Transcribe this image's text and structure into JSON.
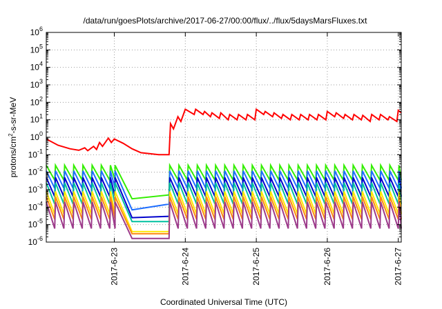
{
  "chart_data": {
    "type": "line",
    "title": "/data/run/goesPlots/archive/2017-06-27/00:00/flux/../flux/5daysMarsFluxes.txt",
    "xlabel": "Coordinated Universal Time (UTC)",
    "ylabel_parts": [
      "protons/cm",
      "2",
      "-s-sr-MeV"
    ],
    "x_range": [
      "2017-06-22 01:00",
      "2017-06-27 01:00"
    ],
    "x_ticks": [
      "2017-6-23",
      "2017-6-24",
      "2017-6-25",
      "2017-6-26",
      "2017-6-27"
    ],
    "y_scale": "log",
    "ylim": [
      1e-06,
      1000000.0
    ],
    "y_ticks": [
      {
        "base": "10",
        "exp": "-6",
        "value": 1e-06
      },
      {
        "base": "10",
        "exp": "-5",
        "value": 1e-05
      },
      {
        "base": "10",
        "exp": "-4",
        "value": 0.0001
      },
      {
        "base": "10",
        "exp": "-3",
        "value": 0.001
      },
      {
        "base": "10",
        "exp": "-2",
        "value": 0.01
      },
      {
        "base": "10",
        "exp": "-1",
        "value": 0.1
      },
      {
        "base": "10",
        "exp": "0",
        "value": 1
      },
      {
        "base": "10",
        "exp": "1",
        "value": 10
      },
      {
        "base": "10",
        "exp": "2",
        "value": 100
      },
      {
        "base": "10",
        "exp": "3",
        "value": 1000
      },
      {
        "base": "10",
        "exp": "4",
        "value": 10000
      },
      {
        "base": "10",
        "exp": "5",
        "value": 100000
      },
      {
        "base": "10",
        "exp": "6",
        "value": 1000000
      }
    ],
    "grid": true,
    "legend": "none",
    "series": [
      {
        "color": "#ff0000",
        "width": 2,
        "points": [
          [
            "2017-06-22 01:00",
            0.8
          ],
          [
            "2017-06-22 05:00",
            0.35
          ],
          [
            "2017-06-22 09:00",
            0.22
          ],
          [
            "2017-06-22 12:00",
            0.18
          ],
          [
            "2017-06-22 14:00",
            0.25
          ],
          [
            "2017-06-22 15:00",
            0.17
          ],
          [
            "2017-06-22 17:00",
            0.3
          ],
          [
            "2017-06-22 18:00",
            0.2
          ],
          [
            "2017-06-22 19:00",
            0.5
          ],
          [
            "2017-06-22 20:00",
            0.3
          ],
          [
            "2017-06-22 22:00",
            0.9
          ],
          [
            "2017-06-22 23:00",
            0.5
          ],
          [
            "2017-06-23 00:00",
            0.8
          ],
          [
            "2017-06-23 03:00",
            0.45
          ],
          [
            "2017-06-23 06:00",
            0.22
          ],
          [
            "2017-06-23 09:00",
            0.13
          ],
          [
            "2017-06-23 15:00",
            0.1
          ],
          [
            "2017-06-23 18:30",
            0.1
          ],
          [
            "2017-06-23 19:00",
            6
          ],
          [
            "2017-06-23 20:00",
            3
          ],
          [
            "2017-06-23 21:30",
            15
          ],
          [
            "2017-06-23 22:30",
            8
          ],
          [
            "2017-06-24 00:00",
            40
          ],
          [
            "2017-06-24 03:00",
            20
          ],
          [
            "2017-06-24 03:30",
            40
          ],
          [
            "2017-06-24 06:00",
            20
          ],
          [
            "2017-06-24 06:30",
            30
          ],
          [
            "2017-06-24 08:30",
            15
          ],
          [
            "2017-06-24 09:00",
            25
          ],
          [
            "2017-06-24 11:30",
            12
          ],
          [
            "2017-06-24 12:00",
            25
          ],
          [
            "2017-06-24 14:30",
            10
          ],
          [
            "2017-06-24 15:00",
            20
          ],
          [
            "2017-06-24 17:30",
            10
          ],
          [
            "2017-06-24 18:00",
            20
          ],
          [
            "2017-06-24 20:30",
            10
          ],
          [
            "2017-06-24 21:00",
            20
          ],
          [
            "2017-06-24 23:30",
            10
          ],
          [
            "2017-06-25 00:00",
            40
          ],
          [
            "2017-06-25 02:30",
            20
          ],
          [
            "2017-06-25 03:00",
            30
          ],
          [
            "2017-06-25 05:30",
            15
          ],
          [
            "2017-06-25 06:00",
            25
          ],
          [
            "2017-06-25 08:30",
            12
          ],
          [
            "2017-06-25 09:00",
            20
          ],
          [
            "2017-06-25 11:30",
            10
          ],
          [
            "2017-06-25 12:00",
            20
          ],
          [
            "2017-06-25 14:30",
            10
          ],
          [
            "2017-06-25 15:00",
            20
          ],
          [
            "2017-06-25 17:30",
            10
          ],
          [
            "2017-06-25 18:00",
            20
          ],
          [
            "2017-06-25 20:30",
            10
          ],
          [
            "2017-06-25 21:00",
            20
          ],
          [
            "2017-06-25 23:30",
            10
          ],
          [
            "2017-06-26 00:00",
            30
          ],
          [
            "2017-06-26 02:30",
            15
          ],
          [
            "2017-06-26 03:00",
            25
          ],
          [
            "2017-06-26 05:30",
            12
          ],
          [
            "2017-06-26 06:00",
            20
          ],
          [
            "2017-06-26 08:30",
            10
          ],
          [
            "2017-06-26 09:00",
            20
          ],
          [
            "2017-06-26 11:30",
            10
          ],
          [
            "2017-06-26 12:00",
            18
          ],
          [
            "2017-06-26 14:30",
            8
          ],
          [
            "2017-06-26 15:00",
            20
          ],
          [
            "2017-06-26 17:30",
            10
          ],
          [
            "2017-06-26 18:00",
            20
          ],
          [
            "2017-06-26 20:30",
            10
          ],
          [
            "2017-06-26 21:00",
            15
          ],
          [
            "2017-06-26 23:30",
            8
          ],
          [
            "2017-06-27 00:00",
            35
          ],
          [
            "2017-06-27 01:00",
            25
          ]
        ]
      },
      {
        "color": "#33ee00",
        "width": 2,
        "sawtooth": {
          "pre_start": "2017-06-22 01:00",
          "pre_end": "2017-06-23 00:15",
          "pre_peak": 0.025,
          "pre_trough": 0.0035,
          "decay_start": "2017-06-23 00:15",
          "decay_end": "2017-06-23 06:00",
          "floor": 0.0003,
          "floor_end": "2017-06-23 18:30",
          "floor_end_value": 0.0005,
          "post_start": "2017-06-23 18:45",
          "post_end": "2017-06-27 01:00",
          "post_peak": 0.025,
          "post_trough": 0.0035,
          "period_hours": 3.1
        }
      },
      {
        "color": "#1e6eff",
        "width": 2,
        "sawtooth": {
          "pre_start": "2017-06-22 01:00",
          "pre_end": "2017-06-23 00:15",
          "pre_peak": 0.012,
          "pre_trough": 0.0012,
          "decay_start": "2017-06-23 00:15",
          "decay_end": "2017-06-23 06:00",
          "floor": 7e-05,
          "floor_end": "2017-06-23 18:30",
          "floor_end_value": 0.00015,
          "post_start": "2017-06-23 18:45",
          "post_end": "2017-06-27 01:00",
          "post_peak": 0.012,
          "post_trough": 0.0012,
          "period_hours": 3.1
        }
      },
      {
        "color": "#0000cc",
        "width": 2,
        "sawtooth": {
          "pre_start": "2017-06-22 01:00",
          "pre_end": "2017-06-23 00:15",
          "pre_peak": 0.005,
          "pre_trough": 0.0004,
          "decay_start": "2017-06-23 00:15",
          "decay_end": "2017-06-23 06:00",
          "floor": 2.5e-05,
          "floor_end": "2017-06-23 18:30",
          "floor_end_value": 3e-05,
          "post_start": "2017-06-23 18:45",
          "post_end": "2017-06-27 01:00",
          "post_peak": 0.005,
          "post_trough": 0.0004,
          "period_hours": 3.1
        }
      },
      {
        "color": "#00c0a0",
        "width": 2,
        "sawtooth": {
          "pre_start": "2017-06-22 01:00",
          "pre_end": "2017-06-23 00:15",
          "pre_peak": 0.0025,
          "pre_trough": 0.00015,
          "decay_start": "2017-06-23 00:15",
          "decay_end": "2017-06-23 06:00",
          "floor": 1.5e-05,
          "floor_end": "2017-06-23 18:30",
          "floor_end_value": 1.5e-05,
          "post_start": "2017-06-23 18:45",
          "post_end": "2017-06-27 01:00",
          "post_peak": 0.0025,
          "post_trough": 0.00015,
          "period_hours": 3.1
        }
      },
      {
        "color": "#ffe800",
        "width": 2,
        "sawtooth": {
          "pre_start": "2017-06-22 01:00",
          "pre_end": "2017-06-23 00:15",
          "pre_peak": 0.0008,
          "pre_trough": 4e-05,
          "decay_start": "2017-06-23 00:15",
          "decay_end": "2017-06-23 06:00",
          "floor": 4e-06,
          "floor_end": "2017-06-23 18:30",
          "floor_end_value": 4e-06,
          "post_start": "2017-06-23 18:45",
          "post_end": "2017-06-27 01:00",
          "post_peak": 0.0008,
          "post_trough": 4e-05,
          "period_hours": 3.1
        }
      },
      {
        "color": "#ff8a10",
        "width": 2,
        "sawtooth": {
          "pre_start": "2017-06-22 01:00",
          "pre_end": "2017-06-23 00:15",
          "pre_peak": 0.0004,
          "pre_trough": 2e-05,
          "decay_start": "2017-06-23 00:15",
          "decay_end": "2017-06-23 06:00",
          "floor": 3e-06,
          "floor_end": "2017-06-23 18:30",
          "floor_end_value": 3e-06,
          "post_start": "2017-06-23 18:45",
          "post_end": "2017-06-27 01:00",
          "post_peak": 0.0004,
          "post_trough": 2e-05,
          "period_hours": 3.1
        }
      },
      {
        "color": "#9c3a8a",
        "width": 2,
        "sawtooth": {
          "pre_start": "2017-06-22 01:00",
          "pre_end": "2017-06-23 00:15",
          "pre_peak": 0.0002,
          "pre_trough": 6e-06,
          "decay_start": "2017-06-23 00:15",
          "decay_end": "2017-06-23 06:00",
          "floor": 1.6e-06,
          "floor_end": "2017-06-23 18:30",
          "floor_end_value": 1.6e-06,
          "post_start": "2017-06-23 18:45",
          "post_end": "2017-06-27 01:00",
          "post_peak": 0.0002,
          "post_trough": 6e-06,
          "period_hours": 3.1
        }
      }
    ]
  }
}
